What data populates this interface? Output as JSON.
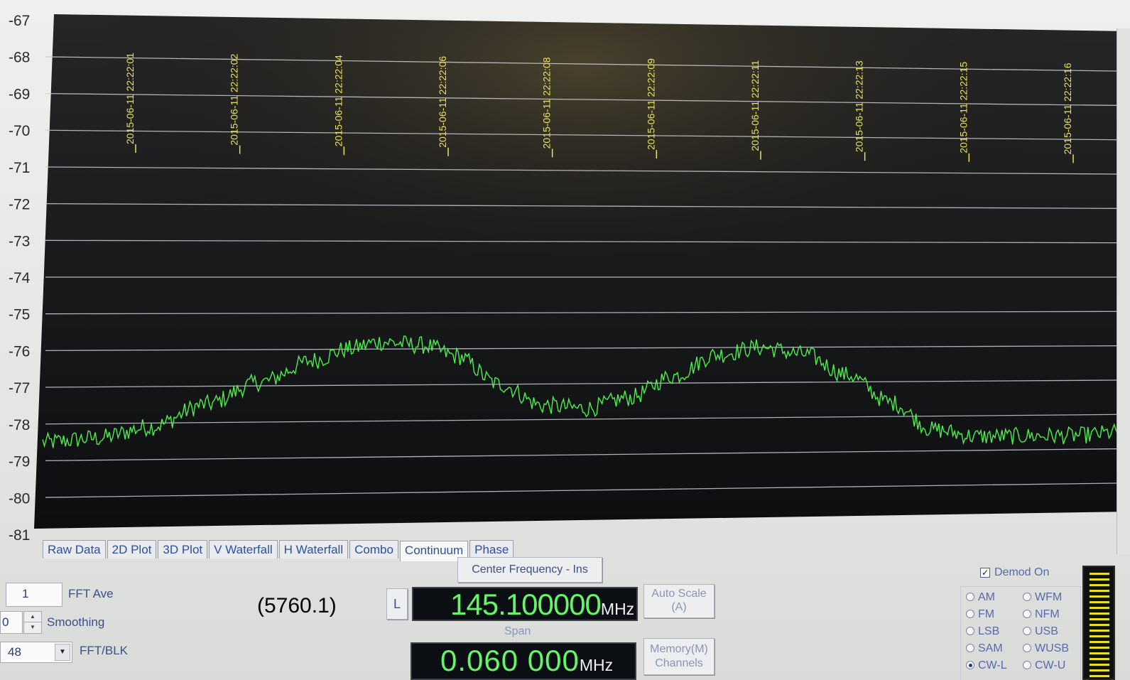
{
  "chart_data": {
    "type": "line",
    "title": "",
    "xlabel": "",
    "ylabel": "",
    "ylim": [
      -81,
      -67
    ],
    "yticks": [
      -67,
      -68,
      -69,
      -70,
      -71,
      -72,
      -73,
      -74,
      -75,
      -76,
      -77,
      -78,
      -79,
      -80,
      -81
    ],
    "timestamps": [
      "2015-06-11 22:22:01",
      "2015-06-11 22:22:02",
      "2015-06-11 22:22:04",
      "2015-06-11 22:22:06",
      "2015-06-11 22:22:08",
      "2015-06-11 22:22:09",
      "2015-06-11 22:22:11",
      "2015-06-11 22:22:13",
      "2015-06-11 22:22:15",
      "2015-06-11 22:22:16"
    ],
    "grid": true,
    "series": [
      {
        "color": "#4dee4d",
        "noise_amplitude": 0.25,
        "points": [
          [
            0.0,
            -78.5
          ],
          [
            0.05,
            -78.4
          ],
          [
            0.1,
            -78.1
          ],
          [
            0.15,
            -77.5
          ],
          [
            0.2,
            -76.9
          ],
          [
            0.25,
            -76.3
          ],
          [
            0.28,
            -76.0
          ],
          [
            0.31,
            -75.8
          ],
          [
            0.35,
            -75.9
          ],
          [
            0.38,
            -76.2
          ],
          [
            0.42,
            -77.0
          ],
          [
            0.46,
            -77.6
          ],
          [
            0.5,
            -77.7
          ],
          [
            0.54,
            -77.4
          ],
          [
            0.58,
            -76.8
          ],
          [
            0.62,
            -76.2
          ],
          [
            0.66,
            -76.0
          ],
          [
            0.7,
            -76.2
          ],
          [
            0.74,
            -76.8
          ],
          [
            0.78,
            -77.6
          ],
          [
            0.82,
            -78.4
          ],
          [
            0.86,
            -78.6
          ],
          [
            0.9,
            -78.6
          ],
          [
            0.95,
            -78.6
          ],
          [
            1.0,
            -78.5
          ]
        ]
      }
    ]
  },
  "tabs": [
    {
      "label": "Raw Data",
      "active": false
    },
    {
      "label": "2D Plot",
      "active": false
    },
    {
      "label": "3D Plot",
      "active": false
    },
    {
      "label": "V Waterfall",
      "active": false
    },
    {
      "label": "H Waterfall",
      "active": false
    },
    {
      "label": "Combo",
      "active": false
    },
    {
      "label": "Continuum",
      "active": true
    },
    {
      "label": "Phase",
      "active": false
    }
  ],
  "controls": {
    "fft_ave_value": "1",
    "fft_ave_label": "FFT Ave",
    "smoothing_value": "0",
    "smoothing_label": "Smoothing",
    "fft_blk_value": "48",
    "fft_blk_label": "FFT/BLK",
    "annotation": "(5760.1)",
    "l_button": "L",
    "center_freq_label": "Center Frequency - Ins",
    "center_freq_value": "145.100000",
    "center_freq_unit": "MHz",
    "auto_scale_label": "Auto Scale",
    "auto_scale_key": "(A)",
    "span_label": "Span",
    "span_value": "0.060 000",
    "span_unit": "MHz",
    "memory_label": "Memory(M)",
    "memory_sub": "Channels",
    "demod_on_label": "Demod On",
    "demod_on_checked": true
  },
  "modes": [
    {
      "label": "AM",
      "checked": false
    },
    {
      "label": "WFM",
      "checked": false
    },
    {
      "label": "FM",
      "checked": false
    },
    {
      "label": "NFM",
      "checked": false
    },
    {
      "label": "LSB",
      "checked": false
    },
    {
      "label": "USB",
      "checked": false
    },
    {
      "label": "SAM",
      "checked": false
    },
    {
      "label": "WUSB",
      "checked": false
    },
    {
      "label": "CW-L",
      "checked": true
    },
    {
      "label": "CW-U",
      "checked": false
    }
  ]
}
